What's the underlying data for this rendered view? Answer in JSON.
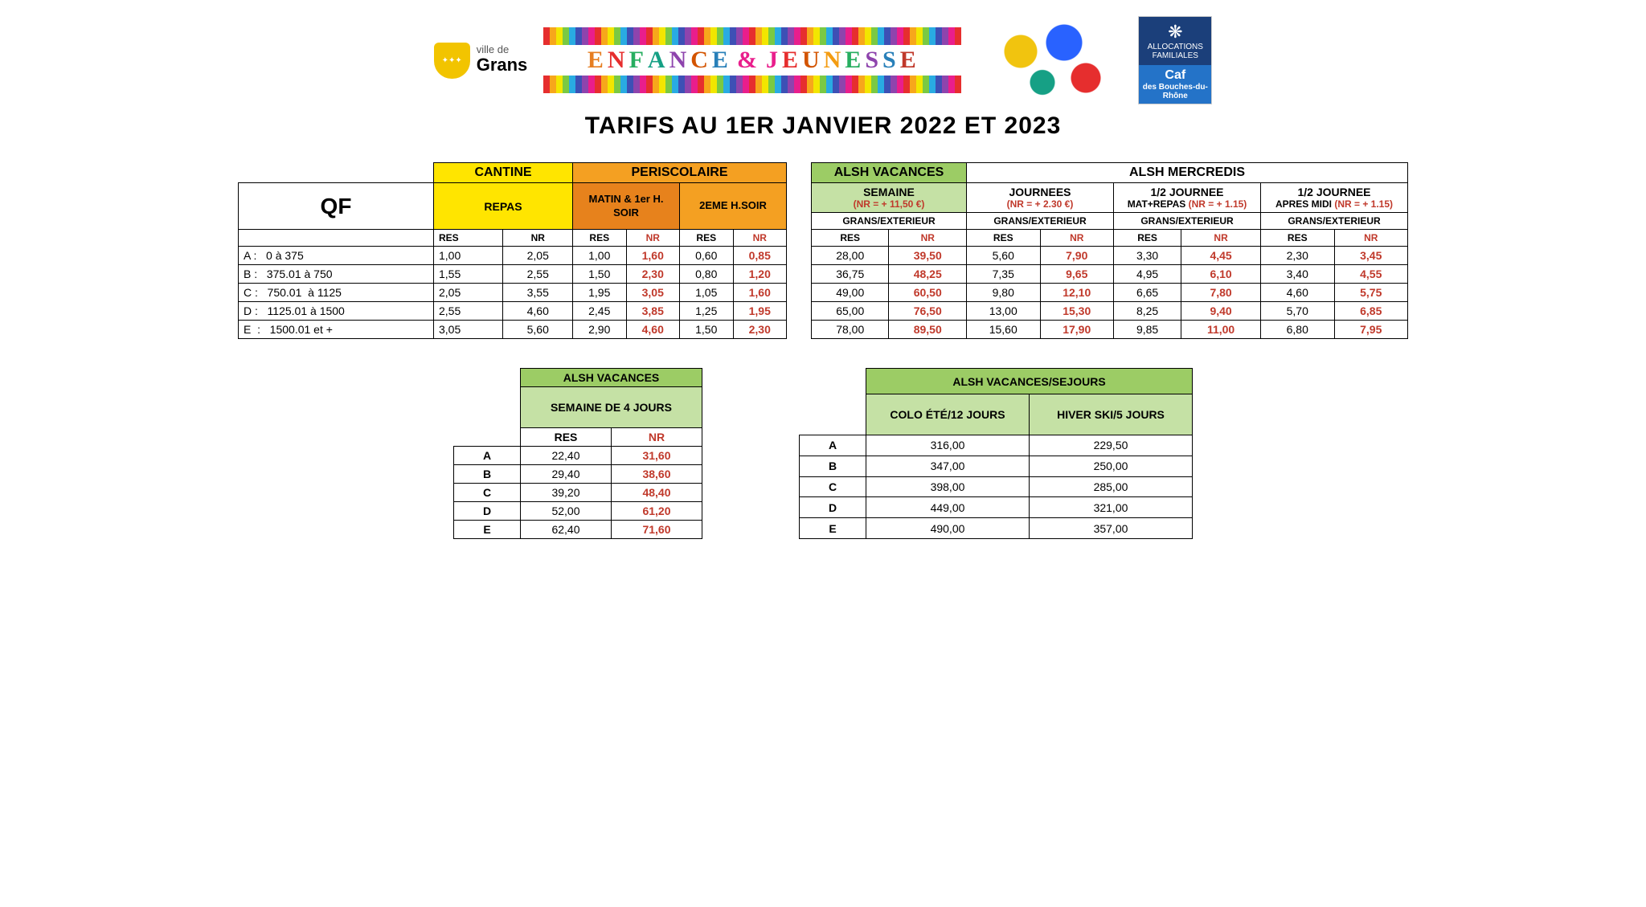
{
  "header": {
    "logo_ville": "ville de",
    "logo_grans": "Grans",
    "enfance": "ENFANCE",
    "jeunesse": "JEUNESSE",
    "amp": "&",
    "caf_line1": "ALLOCATIONS FAMILIALES",
    "caf_line2": "Caf",
    "caf_line3": "des Bouches-du-Rhône"
  },
  "title": "TARIFS AU 1ER JANVIER 2022 ET 2023",
  "main": {
    "qf_label": "QF",
    "sections": {
      "cantine": "CANTINE",
      "periscolaire": "PERISCOLAIRE",
      "alsh_vac": "ALSH VACANCES",
      "alsh_mer": "ALSH MERCREDIS"
    },
    "sub": {
      "repas": "REPAS",
      "matin": "MATIN & 1er H. SOIR",
      "soir2": "2EME H.SOIR",
      "semaine": "SEMAINE",
      "semaine_note": "(NR = + 11,50 €)",
      "journees": "JOURNEES",
      "journees_note": "(NR = + 2.30 €)",
      "demi1": "1/2 JOURNEE",
      "demi1_sub": "MAT+REPAS",
      "demi1_note": "(NR = + 1.15)",
      "demi2": "1/2 JOURNEE",
      "demi2_sub": "APRES MIDI",
      "demi2_note": "(NR = + 1.15)",
      "grans_ext": "GRANS/EXTERIEUR",
      "res": "RES",
      "nr": "NR"
    },
    "rows": [
      {
        "label": "A :   0 à 375",
        "cantine": [
          "1,00",
          "2,05"
        ],
        "peri": [
          "1,00",
          "1,60",
          "0,60",
          "0,85"
        ],
        "vac": [
          "28,00",
          "39,50"
        ],
        "mer": [
          "5,60",
          "7,90",
          "3,30",
          "4,45",
          "2,30",
          "3,45"
        ]
      },
      {
        "label": "B :   375.01 à 750",
        "cantine": [
          "1,55",
          "2,55"
        ],
        "peri": [
          "1,50",
          "2,30",
          "0,80",
          "1,20"
        ],
        "vac": [
          "36,75",
          "48,25"
        ],
        "mer": [
          "7,35",
          "9,65",
          "4,95",
          "6,10",
          "3,40",
          "4,55"
        ]
      },
      {
        "label": "C :   750.01  à 1125",
        "cantine": [
          "2,05",
          "3,55"
        ],
        "peri": [
          "1,95",
          "3,05",
          "1,05",
          "1,60"
        ],
        "vac": [
          "49,00",
          "60,50"
        ],
        "mer": [
          "9,80",
          "12,10",
          "6,65",
          "7,80",
          "4,60",
          "5,75"
        ]
      },
      {
        "label": "D :   1125.01 à 1500",
        "cantine": [
          "2,55",
          "4,60"
        ],
        "peri": [
          "2,45",
          "3,85",
          "1,25",
          "1,95"
        ],
        "vac": [
          "65,00",
          "76,50"
        ],
        "mer": [
          "13,00",
          "15,30",
          "8,25",
          "9,40",
          "5,70",
          "6,85"
        ]
      },
      {
        "label": "E  :   1500.01 et +",
        "cantine": [
          "3,05",
          "5,60"
        ],
        "peri": [
          "2,90",
          "4,60",
          "1,50",
          "2,30"
        ],
        "vac": [
          "78,00",
          "89,50"
        ],
        "mer": [
          "15,60",
          "17,90",
          "9,85",
          "11,00",
          "6,80",
          "7,95"
        ]
      }
    ]
  },
  "lower1": {
    "title": "ALSH VACANCES",
    "subtitle": "SEMAINE DE 4 JOURS",
    "res": "RES",
    "nr": "NR",
    "rows": [
      {
        "k": "A",
        "res": "22,40",
        "nr": "31,60"
      },
      {
        "k": "B",
        "res": "29,40",
        "nr": "38,60"
      },
      {
        "k": "C",
        "res": "39,20",
        "nr": "48,40"
      },
      {
        "k": "D",
        "res": "52,00",
        "nr": "61,20"
      },
      {
        "k": "E",
        "res": "62,40",
        "nr": "71,60"
      }
    ]
  },
  "lower2": {
    "title": "ALSH VACANCES/SEJOURS",
    "col1": "COLO ÉTÉ/12 JOURS",
    "col2": "HIVER SKI/5 JOURS",
    "rows": [
      {
        "k": "A",
        "c1": "316,00",
        "c2": "229,50"
      },
      {
        "k": "B",
        "c1": "347,00",
        "c2": "250,00"
      },
      {
        "k": "C",
        "c1": "398,00",
        "c2": "285,00"
      },
      {
        "k": "D",
        "c1": "449,00",
        "c2": "321,00"
      },
      {
        "k": "E",
        "c1": "490,00",
        "c2": "357,00"
      }
    ]
  }
}
